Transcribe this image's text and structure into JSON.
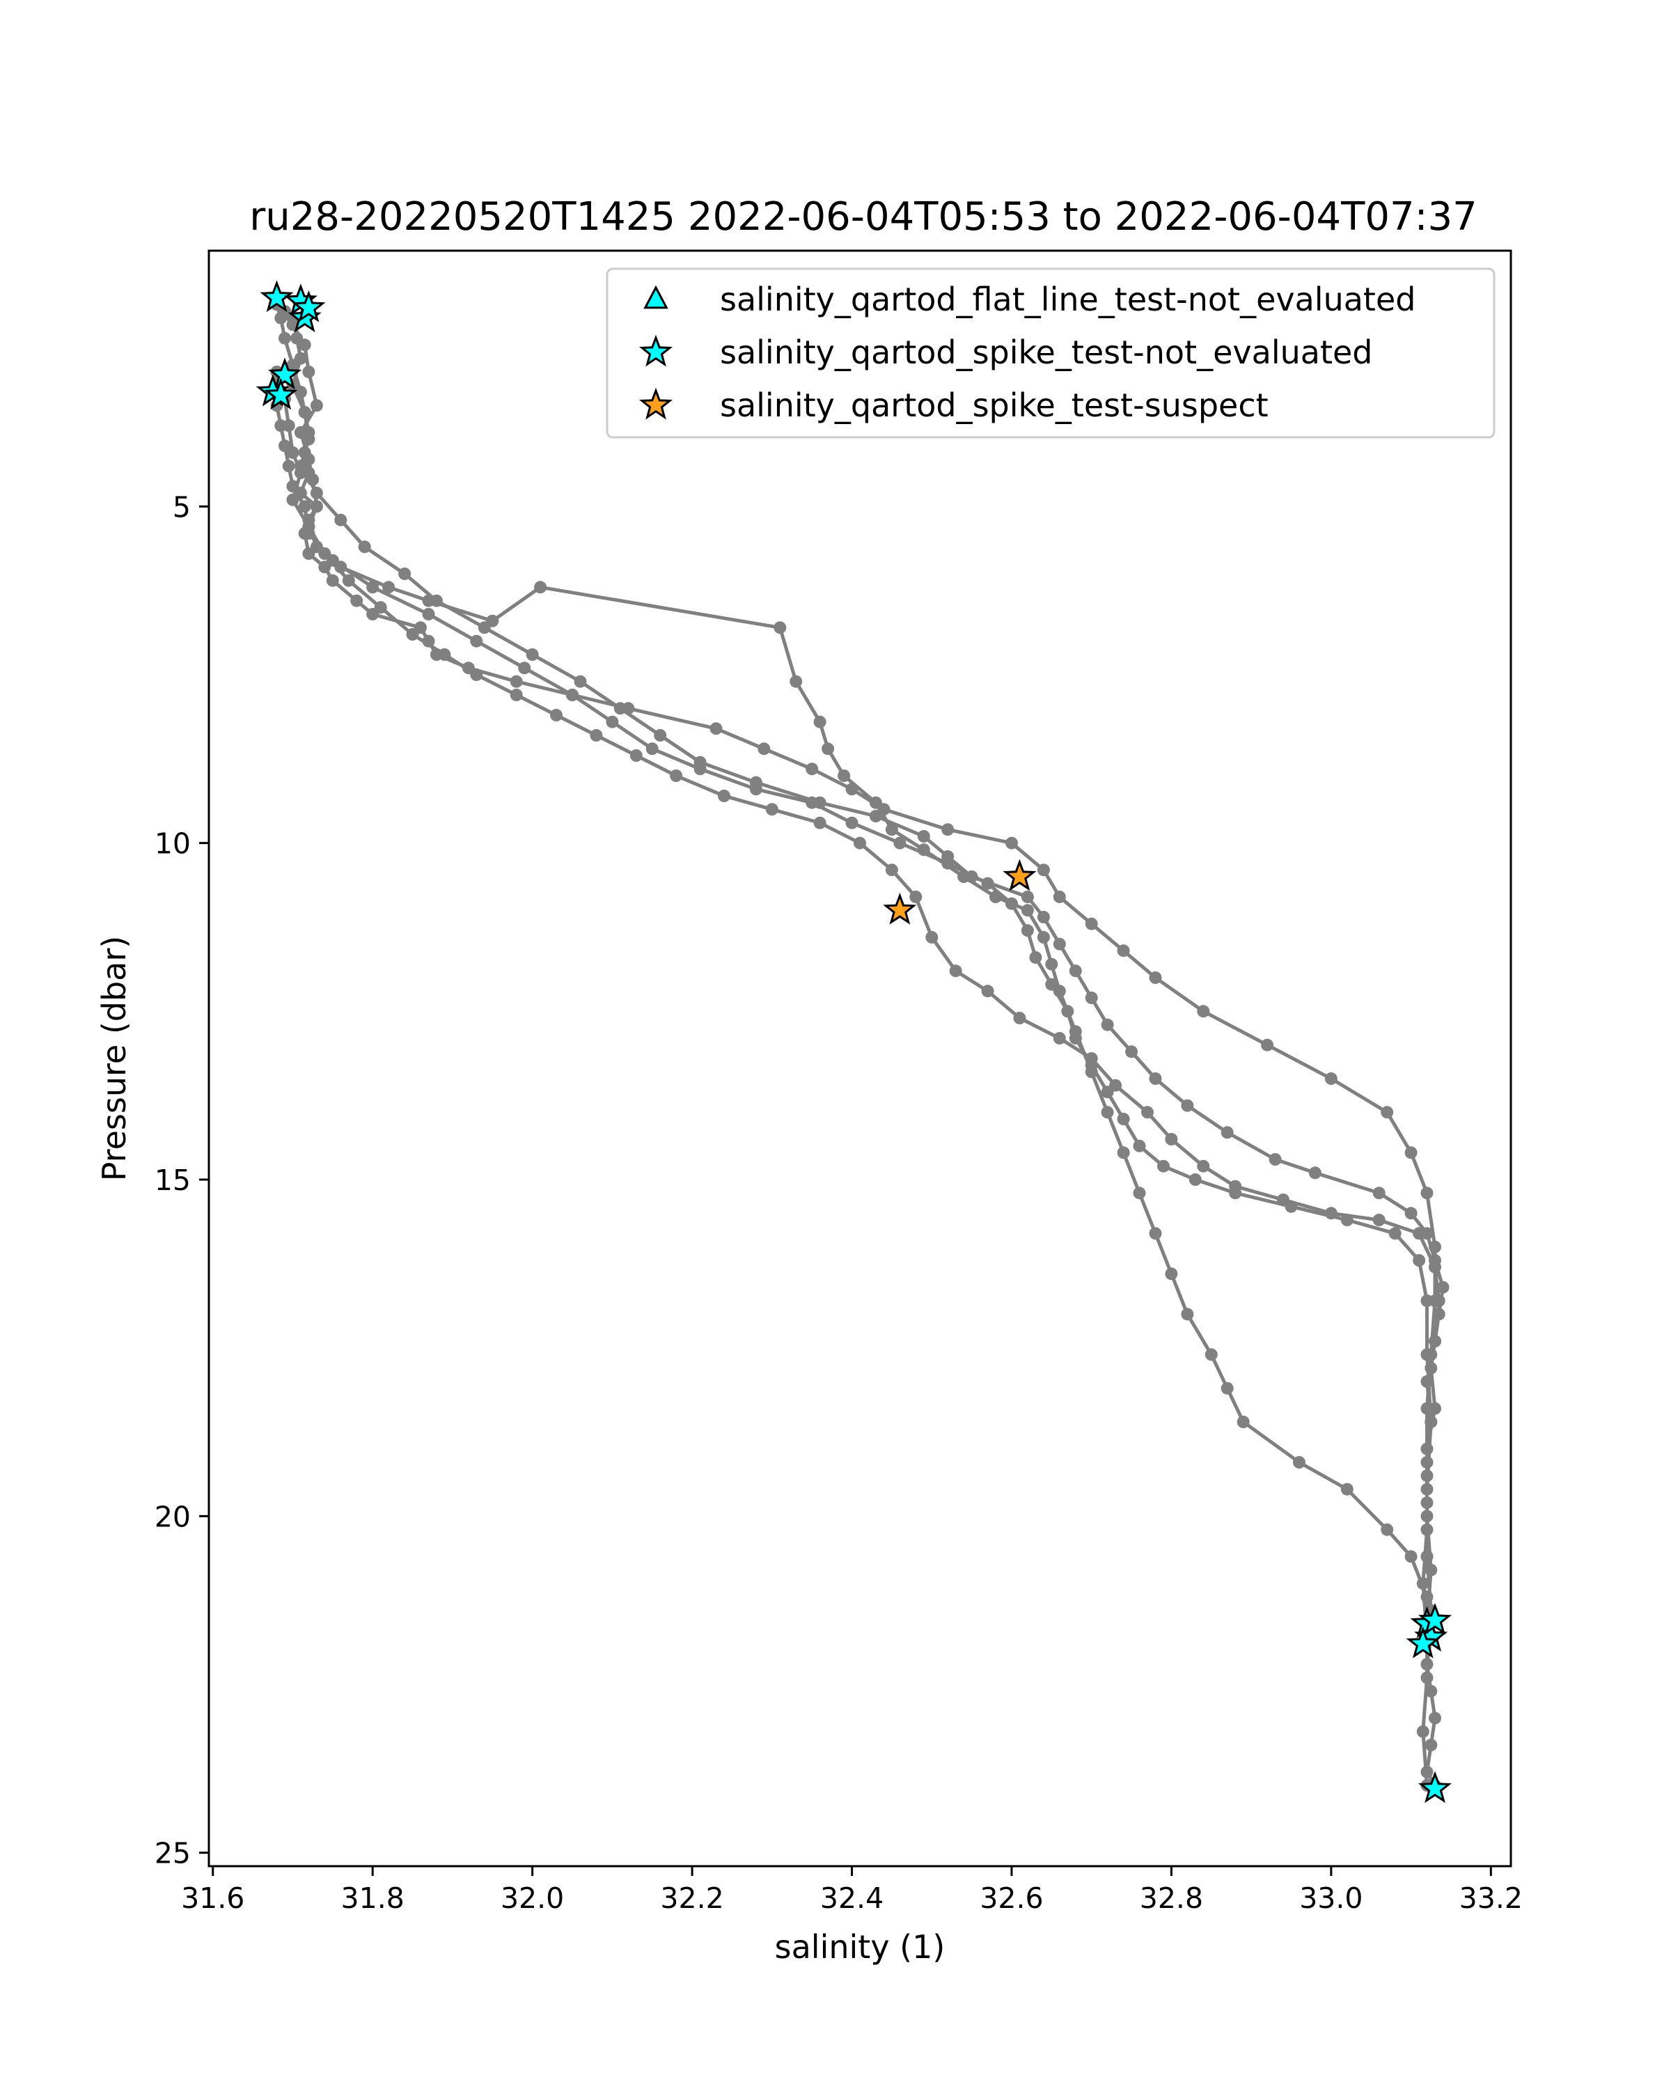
{
  "chart_data": {
    "type": "scatter",
    "title": "ru28-20220520T1425 2022-06-04T05:53 to 2022-06-04T07:37",
    "xlabel": "salinity (1)",
    "ylabel": "Pressure (dbar)",
    "xlim": [
      31.595,
      33.225
    ],
    "ylim": [
      25.2,
      1.2
    ],
    "y_inverted": true,
    "grid": false,
    "legend_placement": "upper right",
    "x_ticks": [
      31.6,
      31.8,
      32.0,
      32.2,
      32.4,
      32.6,
      32.8,
      33.0,
      33.2
    ],
    "x_tick_labels": [
      "31.6",
      "31.8",
      "32.0",
      "32.2",
      "32.4",
      "32.6",
      "32.8",
      "33.0",
      "33.2"
    ],
    "y_ticks": [
      5,
      10,
      15,
      20,
      25
    ],
    "y_tick_labels": [
      "5",
      "10",
      "15",
      "20",
      "25"
    ],
    "colors": {
      "profile": "#808080",
      "not_evaluated": "#00ffff",
      "suspect": "#ff9f1c",
      "marker_edge": "#000000"
    },
    "legend": [
      {
        "label": "salinity_qartod_flat_line_test-not_evaluated",
        "marker": "triangle",
        "color": "#00ffff"
      },
      {
        "label": "salinity_qartod_spike_test-not_evaluated",
        "marker": "star",
        "color": "#00ffff"
      },
      {
        "label": "salinity_qartod_spike_test-suspect",
        "marker": "star",
        "color": "#ff9f1c"
      }
    ],
    "series": [
      {
        "name": "profile",
        "x": [
          31.68,
          31.685,
          31.69,
          31.7,
          31.71,
          31.715,
          31.72,
          31.715,
          31.72,
          31.71,
          31.73,
          31.72,
          31.715,
          31.72,
          31.74,
          31.75,
          31.78,
          31.8,
          31.86,
          31.87,
          31.88,
          31.92,
          31.98,
          32.05,
          32.12,
          32.23,
          32.29,
          32.35,
          32.4,
          32.44,
          32.52,
          32.6,
          32.64,
          32.66,
          32.7,
          32.74,
          32.78,
          32.84,
          32.92,
          33.0,
          33.07,
          33.1,
          33.12,
          33.13,
          33.13,
          33.125,
          33.12,
          33.12,
          33.12,
          33.125,
          33.12,
          33.12,
          33.115,
          33.12
        ],
        "y": [
          2.0,
          2.2,
          2.5,
          2.9,
          3.3,
          3.6,
          3.9,
          4.2,
          4.5,
          4.8,
          5.0,
          5.2,
          5.4,
          5.7,
          5.9,
          6.1,
          6.4,
          6.6,
          6.8,
          7.0,
          7.2,
          7.4,
          7.6,
          7.8,
          8.0,
          8.3,
          8.6,
          8.9,
          9.2,
          9.5,
          9.8,
          10.0,
          10.4,
          10.8,
          11.2,
          11.6,
          12.0,
          12.5,
          13.0,
          13.5,
          14.0,
          14.6,
          15.2,
          16.0,
          16.8,
          17.6,
          18.4,
          19.2,
          20.0,
          20.8,
          21.6,
          22.4,
          23.2,
          24.0
        ]
      },
      {
        "name": "profile",
        "x": [
          31.69,
          31.7,
          31.715,
          31.72,
          31.73,
          31.71,
          31.72,
          31.725,
          31.73,
          31.72,
          31.73,
          31.76,
          31.82,
          31.87,
          31.95,
          32.01,
          32.31,
          32.33,
          32.36,
          32.37,
          32.39,
          32.43,
          32.45,
          32.49,
          32.54,
          32.58,
          32.62,
          32.64,
          32.65,
          32.66,
          32.68,
          32.7,
          32.72,
          32.74,
          32.76,
          32.78,
          32.8,
          32.82,
          32.85,
          32.87,
          32.89,
          32.96,
          33.02,
          33.07,
          33.1,
          33.12,
          33.125,
          33.12,
          33.125,
          33.13,
          33.125,
          33.12,
          33.13
        ],
        "y": [
          2.1,
          2.3,
          2.6,
          3.0,
          3.5,
          3.9,
          4.3,
          4.6,
          5.0,
          5.3,
          5.6,
          5.9,
          6.2,
          6.4,
          6.7,
          6.2,
          6.8,
          7.6,
          8.2,
          8.6,
          9.0,
          9.4,
          9.8,
          10.1,
          10.5,
          10.8,
          11.0,
          11.4,
          11.8,
          12.2,
          12.8,
          13.4,
          14.0,
          14.6,
          15.2,
          15.8,
          16.4,
          17.0,
          17.6,
          18.1,
          18.6,
          19.2,
          19.6,
          20.2,
          20.6,
          21.2,
          21.8,
          22.2,
          22.6,
          23.0,
          23.4,
          23.8,
          24.0
        ]
      },
      {
        "name": "profile",
        "x": [
          31.7,
          31.705,
          31.71,
          31.7,
          31.715,
          31.72,
          31.71,
          31.73,
          31.76,
          31.79,
          31.84,
          31.88,
          31.94,
          32.0,
          32.06,
          32.11,
          32.16,
          32.21,
          32.28,
          32.36,
          32.43,
          32.49,
          32.52,
          32.55,
          32.62,
          32.64,
          32.66,
          32.68,
          32.7,
          32.72,
          32.75,
          32.78,
          32.82,
          32.87,
          32.93,
          32.98,
          33.06,
          33.1,
          33.12,
          33.13,
          33.14,
          33.135,
          33.13,
          33.125,
          33.13,
          33.12,
          33.12,
          33.12,
          33.125
        ],
        "y": [
          2.2,
          2.5,
          2.8,
          3.2,
          3.6,
          4.0,
          4.4,
          4.8,
          5.2,
          5.6,
          6.0,
          6.4,
          6.8,
          7.2,
          7.6,
          8.0,
          8.4,
          8.8,
          9.1,
          9.4,
          9.6,
          9.9,
          10.2,
          10.5,
          10.8,
          11.1,
          11.5,
          11.9,
          12.3,
          12.7,
          13.1,
          13.5,
          13.9,
          14.3,
          14.7,
          14.9,
          15.2,
          15.5,
          15.8,
          16.2,
          16.6,
          17.0,
          17.4,
          17.8,
          18.4,
          19.0,
          19.8,
          20.6,
          21.4
        ]
      },
      {
        "name": "profile",
        "x": [
          31.675,
          31.68,
          31.69,
          31.695,
          31.7,
          31.71,
          31.7,
          31.72,
          31.74,
          31.77,
          31.81,
          31.85,
          31.89,
          31.93,
          31.98,
          32.03,
          32.08,
          32.13,
          32.18,
          32.24,
          32.3,
          32.36,
          32.41,
          32.45,
          32.48,
          32.5,
          32.53,
          32.57,
          32.61,
          32.66,
          32.7,
          32.73,
          32.77,
          32.8,
          32.84,
          32.88,
          32.94,
          33.0,
          33.06,
          33.11,
          33.13,
          33.135,
          33.13,
          33.12,
          33.125,
          33.12,
          33.12,
          33.115,
          33.12
        ],
        "y": [
          3.3,
          3.0,
          3.4,
          3.8,
          4.2,
          4.5,
          4.9,
          5.3,
          5.7,
          6.1,
          6.5,
          6.9,
          7.2,
          7.5,
          7.8,
          8.1,
          8.4,
          8.7,
          9.0,
          9.3,
          9.5,
          9.7,
          10.0,
          10.4,
          10.8,
          11.4,
          11.9,
          12.2,
          12.6,
          12.9,
          13.2,
          13.6,
          14.0,
          14.4,
          14.8,
          15.1,
          15.3,
          15.5,
          15.6,
          15.8,
          16.3,
          16.8,
          17.4,
          18.0,
          18.6,
          19.4,
          20.2,
          21.0,
          21.8
        ]
      },
      {
        "name": "profile",
        "x": [
          31.68,
          31.685,
          31.69,
          31.695,
          31.7,
          31.715,
          31.72,
          31.75,
          31.8,
          31.87,
          31.93,
          31.99,
          32.05,
          32.1,
          32.15,
          32.21,
          32.28,
          32.35,
          32.4,
          32.46,
          32.52,
          32.57,
          32.6,
          32.62,
          32.63,
          32.65,
          32.67,
          32.68,
          32.7,
          32.72,
          32.74,
          32.76,
          32.79,
          32.83,
          32.88,
          32.95,
          33.02,
          33.08,
          33.11,
          33.12,
          33.12,
          33.125,
          33.12,
          33.12
        ],
        "y": [
          3.5,
          3.8,
          4.1,
          4.4,
          4.7,
          5.0,
          5.4,
          5.8,
          6.2,
          6.6,
          7.0,
          7.4,
          7.8,
          8.2,
          8.6,
          8.9,
          9.2,
          9.4,
          9.7,
          10.0,
          10.3,
          10.6,
          10.9,
          11.3,
          11.7,
          12.1,
          12.5,
          12.9,
          13.3,
          13.7,
          14.1,
          14.5,
          14.8,
          15.0,
          15.2,
          15.4,
          15.6,
          15.8,
          16.2,
          16.8,
          17.6,
          18.6,
          19.6,
          20.6
        ]
      }
    ],
    "flagged_points": [
      {
        "label": "salinity_qartod_spike_test-not_evaluated",
        "x": [
          31.68,
          31.71,
          31.715,
          31.72,
          31.69,
          31.675,
          31.685,
          33.12,
          33.125,
          33.13,
          33.115,
          33.13
        ],
        "y": [
          1.9,
          1.95,
          2.2,
          2.05,
          3.05,
          3.3,
          3.35,
          21.6,
          21.8,
          21.55,
          21.9,
          24.05
        ]
      },
      {
        "label": "salinity_qartod_spike_test-suspect",
        "x": [
          32.61,
          32.46
        ],
        "y": [
          10.5,
          11.0
        ]
      }
    ]
  }
}
